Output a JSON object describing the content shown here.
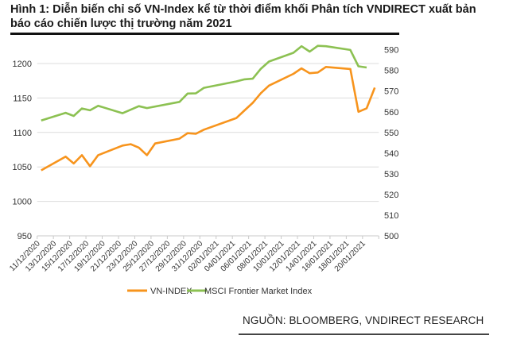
{
  "title": "Hình 1: Diễn biến chỉ số VN-Index kể từ thời điểm khối Phân tích VNDIRECT xuất bản báo cáo chiến lược thị trường năm 2021",
  "source": "NGUỒN: BLOOMBERG, VNDIRECT RESEARCH",
  "chart_data": {
    "type": "line",
    "title": "",
    "xlabel": "",
    "ylabel": "",
    "x_axis": "date",
    "x_tick_labels": [
      "11/12/2020",
      "13/12/2020",
      "15/12/2020",
      "17/12/2020",
      "19/12/2020",
      "21/12/2020",
      "23/12/2020",
      "25/12/2020",
      "27/12/2020",
      "29/12/2020",
      "31/12/2020",
      "02/01/2021",
      "04/01/2021",
      "06/01/2021",
      "08/01/2021",
      "10/01/2021",
      "12/01/2021",
      "14/01/2021",
      "16/01/2021",
      "18/01/2021",
      "20/01/2021"
    ],
    "xlim": [
      "11/12/2020",
      "21/01/2021"
    ],
    "y_left": {
      "ylim": [
        950,
        1250
      ],
      "ticks": [
        950,
        1000,
        1050,
        1100,
        1150,
        1200
      ]
    },
    "y_right": {
      "ylim": [
        500,
        600
      ],
      "ticks": [
        500,
        510,
        520,
        530,
        540,
        550,
        560,
        570,
        580,
        590
      ]
    },
    "grid": "horizontal (left axis)",
    "legend": "bottom",
    "series": [
      {
        "name": "VN-INDEX",
        "axis": "left",
        "color": "#f7941d",
        "points": [
          [
            "11/12/2020",
            1045
          ],
          [
            "14/12/2020",
            1065
          ],
          [
            "15/12/2020",
            1055
          ],
          [
            "16/12/2020",
            1067
          ],
          [
            "17/12/2020",
            1051
          ],
          [
            "18/12/2020",
            1067
          ],
          [
            "21/12/2020",
            1081
          ],
          [
            "22/12/2020",
            1083
          ],
          [
            "23/12/2020",
            1078
          ],
          [
            "24/12/2020",
            1067
          ],
          [
            "25/12/2020",
            1084
          ],
          [
            "28/12/2020",
            1091
          ],
          [
            "29/12/2020",
            1099
          ],
          [
            "30/12/2020",
            1098
          ],
          [
            "31/12/2020",
            1104
          ],
          [
            "04/01/2021",
            1121
          ],
          [
            "05/01/2021",
            1132
          ],
          [
            "06/01/2021",
            1143
          ],
          [
            "07/01/2021",
            1157
          ],
          [
            "08/01/2021",
            1168
          ],
          [
            "11/01/2021",
            1185
          ],
          [
            "12/01/2021",
            1193
          ],
          [
            "13/01/2021",
            1186
          ],
          [
            "14/01/2021",
            1187
          ],
          [
            "15/01/2021",
            1195
          ],
          [
            "18/01/2021",
            1192
          ],
          [
            "19/01/2021",
            1130
          ],
          [
            "20/01/2021",
            1135
          ],
          [
            "21/01/2021",
            1165
          ]
        ]
      },
      {
        "name": "MSCI Frontier Market Index",
        "axis": "right",
        "color": "#8cc152",
        "points": [
          [
            "11/12/2020",
            555.8
          ],
          [
            "14/12/2020",
            559.5
          ],
          [
            "15/12/2020",
            558
          ],
          [
            "16/12/2020",
            561.6
          ],
          [
            "17/12/2020",
            560.7
          ],
          [
            "18/12/2020",
            562.9
          ],
          [
            "21/12/2020",
            559.3
          ],
          [
            "23/12/2020",
            562.7
          ],
          [
            "24/12/2020",
            561.8
          ],
          [
            "28/12/2020",
            564.8
          ],
          [
            "29/12/2020",
            568.8
          ],
          [
            "30/12/2020",
            568.9
          ],
          [
            "31/12/2020",
            571.6
          ],
          [
            "04/01/2021",
            574.7
          ],
          [
            "05/01/2021",
            575.7
          ],
          [
            "06/01/2021",
            576
          ],
          [
            "07/01/2021",
            580.8
          ],
          [
            "08/01/2021",
            584.3
          ],
          [
            "11/01/2021",
            588.5
          ],
          [
            "12/01/2021",
            591.7
          ],
          [
            "13/01/2021",
            589.1
          ],
          [
            "14/01/2021",
            591.9
          ],
          [
            "15/01/2021",
            591.7
          ],
          [
            "18/01/2021",
            589.9
          ],
          [
            "19/01/2021",
            582
          ],
          [
            "20/01/2021",
            581.4
          ]
        ]
      }
    ]
  }
}
